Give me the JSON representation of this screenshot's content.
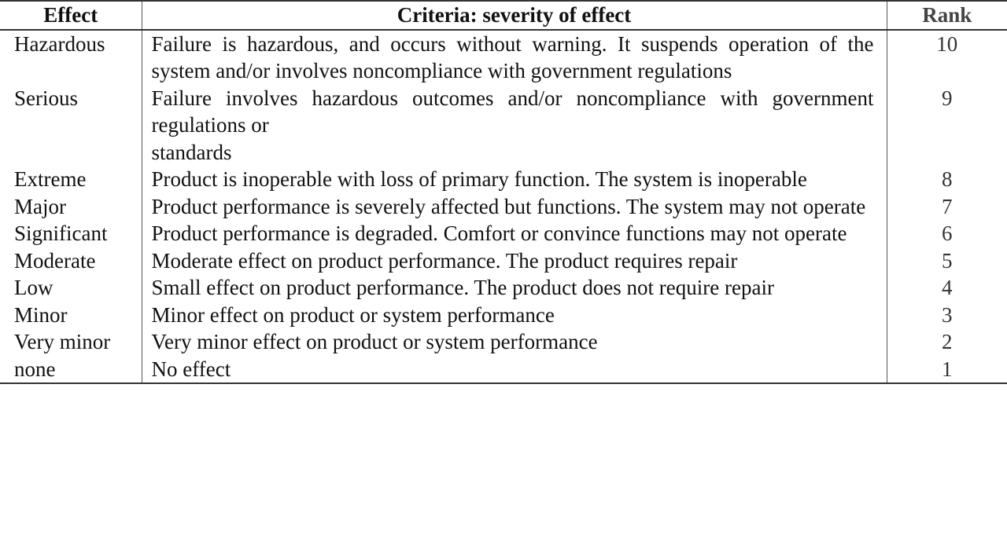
{
  "table": {
    "headers": {
      "effect": "Effect",
      "criteria": "Criteria: severity of effect",
      "rank": "Rank"
    },
    "rows": [
      {
        "effect": "Hazardous",
        "criteria": "Failure is hazardous, and occurs without warning. It suspends operation of the system and/or involves noncompliance with government regulations",
        "rank": "10"
      },
      {
        "effect": "Serious",
        "criteria": "Failure involves hazardous outcomes and/or noncompliance with government regulations or\nstandards",
        "rank": "9"
      },
      {
        "effect": "Extreme",
        "criteria": "Product is inoperable with loss of primary function. The system is inoperable",
        "rank": "8"
      },
      {
        "effect": "Major",
        "criteria": "Product performance is severely affected but functions. The system may not operate",
        "rank": "7"
      },
      {
        "effect": "Significant",
        "criteria": "Product performance is degraded. Comfort or convince functions may not operate",
        "rank": "6"
      },
      {
        "effect": "Moderate",
        "criteria": "Moderate effect on product performance. The product requires repair",
        "rank": "5"
      },
      {
        "effect": "Low",
        "criteria": "Small effect on product performance. The product does not require repair",
        "rank": "4"
      },
      {
        "effect": "Minor",
        "criteria": "Minor effect on product or system performance",
        "rank": "3"
      },
      {
        "effect": "Very minor",
        "criteria": "Very minor effect on product or system performance",
        "rank": "2"
      },
      {
        "effect": "none",
        "criteria": "No effect",
        "rank": "1"
      }
    ]
  }
}
